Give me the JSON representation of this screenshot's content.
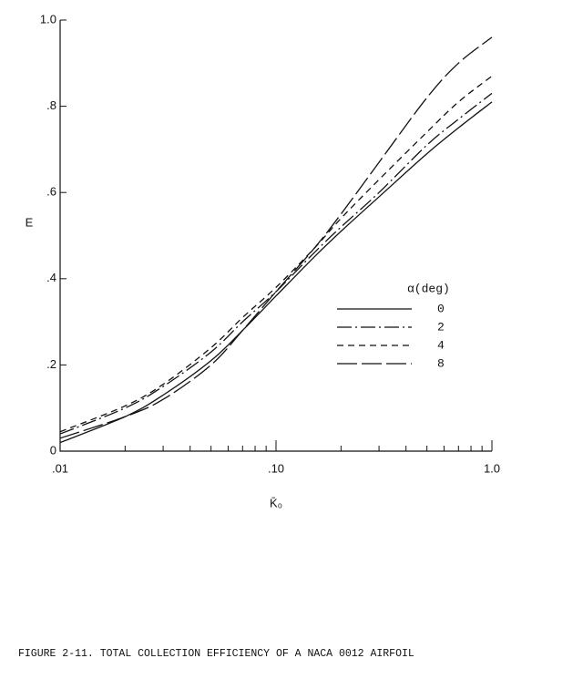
{
  "chart_data": {
    "type": "line",
    "xscale": "log",
    "x_label": "K̄₀",
    "y_label": "E",
    "caption": "FIGURE 2-11.  TOTAL COLLECTION EFFICIENCY OF A NACA 0012 AIRFOIL",
    "legend_title": "α(deg)",
    "legend": "lower-right",
    "x": [
      0.01,
      0.02,
      0.03,
      0.05,
      0.07,
      0.1,
      0.15,
      0.2,
      0.3,
      0.5,
      0.7,
      1.0
    ],
    "series": [
      {
        "name": "0",
        "color": "#111111",
        "dash": "solid",
        "values": [
          0.02,
          0.08,
          0.13,
          0.21,
          0.28,
          0.36,
          0.45,
          0.51,
          0.59,
          0.69,
          0.75,
          0.81
        ]
      },
      {
        "name": "2",
        "color": "#111111",
        "dash": "dash-dot",
        "values": [
          0.04,
          0.1,
          0.15,
          0.23,
          0.3,
          0.37,
          0.46,
          0.52,
          0.6,
          0.71,
          0.77,
          0.83
        ]
      },
      {
        "name": "4",
        "color": "#111111",
        "dash": "dashed",
        "values": [
          0.045,
          0.105,
          0.155,
          0.24,
          0.31,
          0.38,
          0.47,
          0.54,
          0.63,
          0.74,
          0.81,
          0.87
        ]
      },
      {
        "name": "8",
        "color": "#111111",
        "dash": "long-dash",
        "values": [
          0.03,
          0.08,
          0.12,
          0.2,
          0.28,
          0.37,
          0.47,
          0.55,
          0.67,
          0.82,
          0.9,
          0.96
        ]
      }
    ],
    "xlim": [
      0.01,
      1.0
    ],
    "ylim": [
      0,
      1.0
    ],
    "xticks": [
      {
        "value": 0.01,
        "label": ".01"
      },
      {
        "value": 0.1,
        "label": ".10"
      },
      {
        "value": 1.0,
        "label": "1.0"
      }
    ],
    "xminorticks": [
      0.02,
      0.03,
      0.04,
      0.05,
      0.06,
      0.07,
      0.08,
      0.09,
      0.2,
      0.3,
      0.4,
      0.5,
      0.6,
      0.7,
      0.8,
      0.9
    ],
    "yticks": [
      0,
      {
        "value": 0.2,
        "label": ".2"
      },
      {
        "value": 0.4,
        "label": ".4"
      },
      {
        "value": 0.6,
        "label": ".6"
      },
      {
        "value": 0.8,
        "label": ".8"
      },
      {
        "value": 1.0,
        "label": "1.0"
      }
    ],
    "grid": false
  }
}
